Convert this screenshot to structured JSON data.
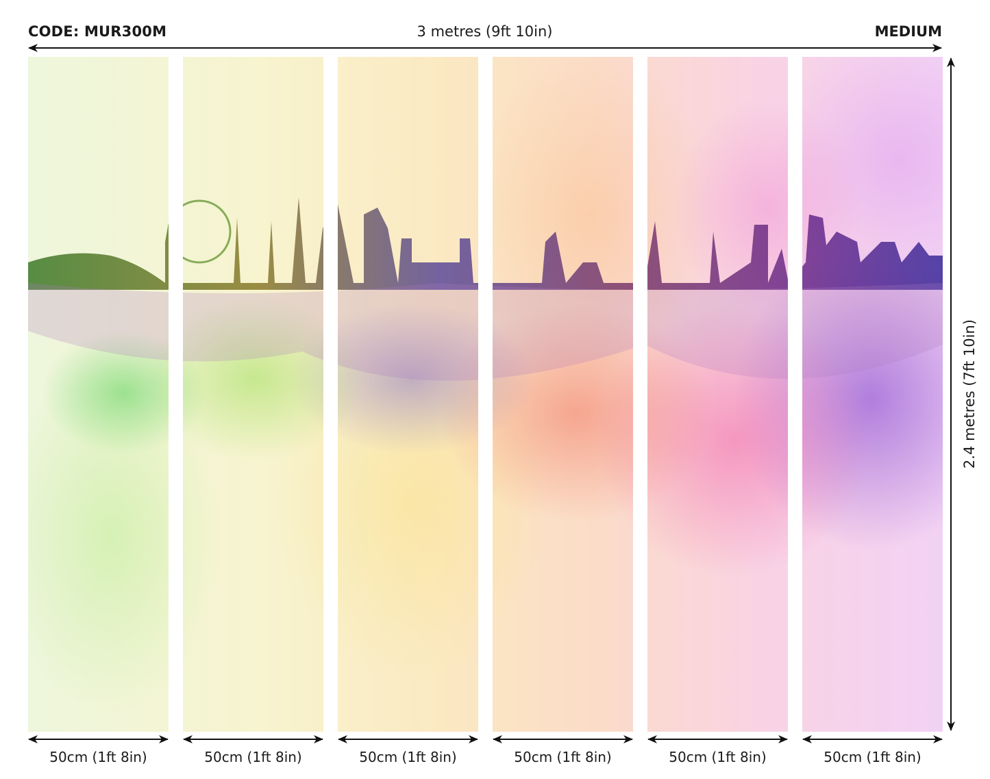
{
  "header": {
    "code": "CODE: MUR300M",
    "width_label": "3 metres (9ft 10in)",
    "size": "MEDIUM"
  },
  "height_label": "2.4 metres (7ft 10in)",
  "panels": [
    {
      "label": "50cm (1ft 8in)"
    },
    {
      "label": "50cm (1ft 8in)"
    },
    {
      "label": "50cm (1ft 8in)"
    },
    {
      "label": "50cm (1ft 8in)"
    },
    {
      "label": "50cm (1ft 8in)"
    },
    {
      "label": "50cm (1ft 8in)"
    }
  ],
  "artwork": {
    "subject": "watercolor-london-skyline",
    "colors": [
      "#7ed957",
      "#f5e27a",
      "#f59a6a",
      "#f06fb4",
      "#8a5ad6"
    ]
  }
}
